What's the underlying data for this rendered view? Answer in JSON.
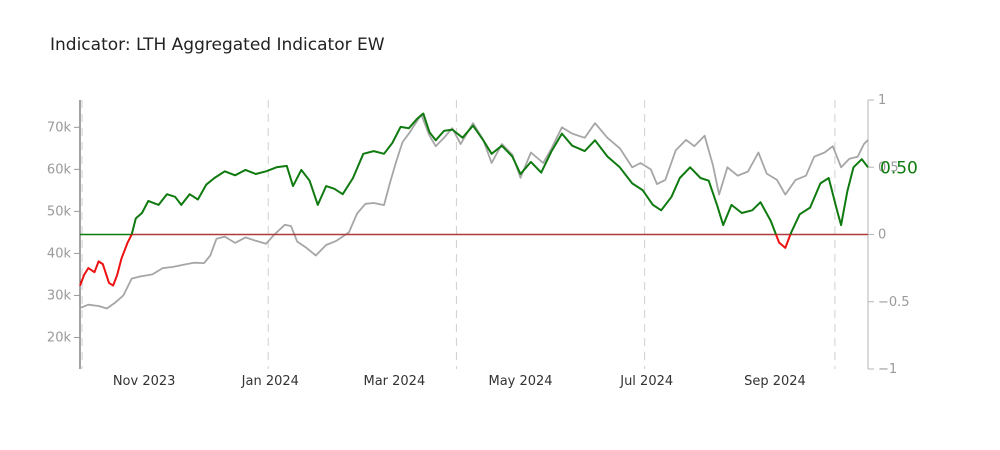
{
  "chart_data": {
    "type": "line",
    "title": "Indicator: LTH Aggregated Indicator EW",
    "x_range": [
      "2023-10-01",
      "2024-10-16"
    ],
    "x_tick_labels": [
      {
        "date": "2023-11-01",
        "label": "Nov 2023"
      },
      {
        "date": "2024-01-01",
        "label": "Jan 2024"
      },
      {
        "date": "2024-03-01",
        "label": "Mar 2024"
      },
      {
        "date": "2024-05-01",
        "label": "May 2024"
      },
      {
        "date": "2024-07-01",
        "label": "Jul 2024"
      },
      {
        "date": "2024-09-01",
        "label": "Sep 2024"
      }
    ],
    "vertical_dashed_lines": [
      "2023-10-02",
      "2023-12-31",
      "2024-03-31",
      "2024-06-30",
      "2024-09-30"
    ],
    "y_left": {
      "range": [
        12500,
        76500
      ],
      "ticks": [
        20000,
        30000,
        40000,
        50000,
        60000,
        70000
      ],
      "tick_labels": [
        "20k",
        "30k",
        "40k",
        "50k",
        "60k",
        "70k"
      ]
    },
    "y_right": {
      "range": [
        -1,
        1
      ],
      "ticks": [
        -1,
        -0.5,
        0,
        0.5,
        1
      ],
      "tick_labels": [
        "−1",
        "−0.5",
        "0",
        "0.5",
        "1"
      ]
    },
    "zero_line_color": "#b03a3a",
    "grid": false,
    "price_series": {
      "color": "#a6a6a6",
      "axis": "left",
      "points": [
        [
          "2023-10-01",
          27000
        ],
        [
          "2023-10-05",
          27800
        ],
        [
          "2023-10-10",
          27500
        ],
        [
          "2023-10-14",
          26900
        ],
        [
          "2023-10-18",
          28300
        ],
        [
          "2023-10-22",
          30000
        ],
        [
          "2023-10-26",
          34000
        ],
        [
          "2023-10-30",
          34500
        ],
        [
          "2023-11-05",
          35000
        ],
        [
          "2023-11-10",
          36500
        ],
        [
          "2023-11-15",
          36800
        ],
        [
          "2023-11-20",
          37300
        ],
        [
          "2023-11-25",
          37800
        ],
        [
          "2023-11-30",
          37700
        ],
        [
          "2023-12-03",
          39500
        ],
        [
          "2023-12-06",
          43500
        ],
        [
          "2023-12-10",
          44000
        ],
        [
          "2023-12-15",
          42500
        ],
        [
          "2023-12-20",
          43800
        ],
        [
          "2023-12-25",
          43000
        ],
        [
          "2023-12-30",
          42300
        ],
        [
          "2024-01-03",
          44500
        ],
        [
          "2024-01-08",
          46800
        ],
        [
          "2024-01-11",
          46500
        ],
        [
          "2024-01-14",
          42800
        ],
        [
          "2024-01-18",
          41500
        ],
        [
          "2024-01-23",
          39500
        ],
        [
          "2024-01-28",
          42000
        ],
        [
          "2024-02-02",
          43000
        ],
        [
          "2024-02-08",
          45000
        ],
        [
          "2024-02-12",
          49500
        ],
        [
          "2024-02-16",
          51800
        ],
        [
          "2024-02-20",
          52000
        ],
        [
          "2024-02-25",
          51500
        ],
        [
          "2024-02-28",
          57000
        ],
        [
          "2024-03-02",
          62000
        ],
        [
          "2024-03-05",
          66500
        ],
        [
          "2024-03-08",
          68500
        ],
        [
          "2024-03-12",
          71500
        ],
        [
          "2024-03-14",
          73000
        ],
        [
          "2024-03-18",
          68000
        ],
        [
          "2024-03-21",
          65500
        ],
        [
          "2024-03-25",
          67500
        ],
        [
          "2024-03-29",
          69800
        ],
        [
          "2024-04-02",
          66000
        ],
        [
          "2024-04-08",
          71000
        ],
        [
          "2024-04-13",
          67000
        ],
        [
          "2024-04-17",
          61500
        ],
        [
          "2024-04-22",
          66000
        ],
        [
          "2024-04-27",
          63500
        ],
        [
          "2024-05-01",
          58000
        ],
        [
          "2024-05-06",
          64000
        ],
        [
          "2024-05-12",
          61500
        ],
        [
          "2024-05-16",
          65000
        ],
        [
          "2024-05-21",
          70000
        ],
        [
          "2024-05-26",
          68500
        ],
        [
          "2024-06-01",
          67500
        ],
        [
          "2024-06-06",
          71000
        ],
        [
          "2024-06-12",
          67500
        ],
        [
          "2024-06-18",
          65000
        ],
        [
          "2024-06-24",
          60500
        ],
        [
          "2024-06-28",
          61500
        ],
        [
          "2024-07-03",
          60000
        ],
        [
          "2024-07-06",
          56500
        ],
        [
          "2024-07-10",
          57500
        ],
        [
          "2024-07-15",
          64500
        ],
        [
          "2024-07-20",
          67000
        ],
        [
          "2024-07-24",
          65500
        ],
        [
          "2024-07-29",
          68000
        ],
        [
          "2024-08-02",
          61000
        ],
        [
          "2024-08-05",
          54000
        ],
        [
          "2024-08-09",
          60500
        ],
        [
          "2024-08-14",
          58500
        ],
        [
          "2024-08-19",
          59500
        ],
        [
          "2024-08-24",
          64000
        ],
        [
          "2024-08-28",
          59000
        ],
        [
          "2024-09-02",
          57500
        ],
        [
          "2024-09-06",
          54000
        ],
        [
          "2024-09-11",
          57500
        ],
        [
          "2024-09-16",
          58500
        ],
        [
          "2024-09-20",
          63000
        ],
        [
          "2024-09-25",
          64000
        ],
        [
          "2024-09-29",
          65500
        ],
        [
          "2024-10-03",
          60500
        ],
        [
          "2024-10-07",
          62500
        ],
        [
          "2024-10-11",
          63000
        ],
        [
          "2024-10-14",
          66000
        ],
        [
          "2024-10-16",
          67000
        ]
      ]
    },
    "indicator_series": {
      "color_positive": "#0f7a0f",
      "color_negative": "#ee1111",
      "axis": "right",
      "last_value_label": "0.50",
      "points": [
        [
          "2023-10-01",
          -0.38
        ],
        [
          "2023-10-03",
          -0.3
        ],
        [
          "2023-10-05",
          -0.25
        ],
        [
          "2023-10-08",
          -0.28
        ],
        [
          "2023-10-10",
          -0.2
        ],
        [
          "2023-10-12",
          -0.22
        ],
        [
          "2023-10-15",
          -0.36
        ],
        [
          "2023-10-17",
          -0.38
        ],
        [
          "2023-10-19",
          -0.3
        ],
        [
          "2023-10-21",
          -0.18
        ],
        [
          "2023-10-24",
          -0.06
        ],
        [
          "2023-10-26",
          0.0
        ],
        [
          "2023-10-28",
          0.12
        ],
        [
          "2023-10-31",
          0.16
        ],
        [
          "2023-11-03",
          0.25
        ],
        [
          "2023-11-08",
          0.22
        ],
        [
          "2023-11-12",
          0.3
        ],
        [
          "2023-11-16",
          0.28
        ],
        [
          "2023-11-19",
          0.22
        ],
        [
          "2023-11-23",
          0.3
        ],
        [
          "2023-11-27",
          0.26
        ],
        [
          "2023-12-01",
          0.37
        ],
        [
          "2023-12-05",
          0.42
        ],
        [
          "2023-12-10",
          0.47
        ],
        [
          "2023-12-15",
          0.44
        ],
        [
          "2023-12-20",
          0.48
        ],
        [
          "2023-12-25",
          0.45
        ],
        [
          "2023-12-30",
          0.47
        ],
        [
          "2024-01-04",
          0.5
        ],
        [
          "2024-01-09",
          0.51
        ],
        [
          "2024-01-12",
          0.36
        ],
        [
          "2024-01-16",
          0.48
        ],
        [
          "2024-01-20",
          0.4
        ],
        [
          "2024-01-24",
          0.22
        ],
        [
          "2024-01-28",
          0.36
        ],
        [
          "2024-02-01",
          0.34
        ],
        [
          "2024-02-05",
          0.3
        ],
        [
          "2024-02-10",
          0.42
        ],
        [
          "2024-02-15",
          0.6
        ],
        [
          "2024-02-20",
          0.62
        ],
        [
          "2024-02-25",
          0.6
        ],
        [
          "2024-02-29",
          0.68
        ],
        [
          "2024-03-04",
          0.8
        ],
        [
          "2024-03-08",
          0.79
        ],
        [
          "2024-03-12",
          0.86
        ],
        [
          "2024-03-15",
          0.9
        ],
        [
          "2024-03-18",
          0.76
        ],
        [
          "2024-03-21",
          0.7
        ],
        [
          "2024-03-25",
          0.77
        ],
        [
          "2024-03-29",
          0.78
        ],
        [
          "2024-04-03",
          0.72
        ],
        [
          "2024-04-08",
          0.81
        ],
        [
          "2024-04-13",
          0.7
        ],
        [
          "2024-04-17",
          0.6
        ],
        [
          "2024-04-22",
          0.66
        ],
        [
          "2024-04-27",
          0.58
        ],
        [
          "2024-05-01",
          0.45
        ],
        [
          "2024-05-06",
          0.54
        ],
        [
          "2024-05-11",
          0.46
        ],
        [
          "2024-05-16",
          0.62
        ],
        [
          "2024-05-21",
          0.75
        ],
        [
          "2024-05-26",
          0.66
        ],
        [
          "2024-06-01",
          0.62
        ],
        [
          "2024-06-06",
          0.7
        ],
        [
          "2024-06-12",
          0.58
        ],
        [
          "2024-06-18",
          0.5
        ],
        [
          "2024-06-24",
          0.38
        ],
        [
          "2024-06-29",
          0.33
        ],
        [
          "2024-07-04",
          0.22
        ],
        [
          "2024-07-08",
          0.18
        ],
        [
          "2024-07-13",
          0.28
        ],
        [
          "2024-07-17",
          0.42
        ],
        [
          "2024-07-22",
          0.5
        ],
        [
          "2024-07-27",
          0.42
        ],
        [
          "2024-07-31",
          0.4
        ],
        [
          "2024-08-04",
          0.22
        ],
        [
          "2024-08-07",
          0.07
        ],
        [
          "2024-08-11",
          0.22
        ],
        [
          "2024-08-16",
          0.16
        ],
        [
          "2024-08-21",
          0.18
        ],
        [
          "2024-08-25",
          0.24
        ],
        [
          "2024-08-30",
          0.1
        ],
        [
          "2024-09-03",
          -0.06
        ],
        [
          "2024-09-06",
          -0.1
        ],
        [
          "2024-09-09",
          0.02
        ],
        [
          "2024-09-13",
          0.15
        ],
        [
          "2024-09-18",
          0.2
        ],
        [
          "2024-09-23",
          0.38
        ],
        [
          "2024-09-27",
          0.42
        ],
        [
          "2024-10-01",
          0.18
        ],
        [
          "2024-10-03",
          0.07
        ],
        [
          "2024-10-06",
          0.32
        ],
        [
          "2024-10-09",
          0.5
        ],
        [
          "2024-10-13",
          0.56
        ],
        [
          "2024-10-16",
          0.5
        ]
      ]
    }
  }
}
